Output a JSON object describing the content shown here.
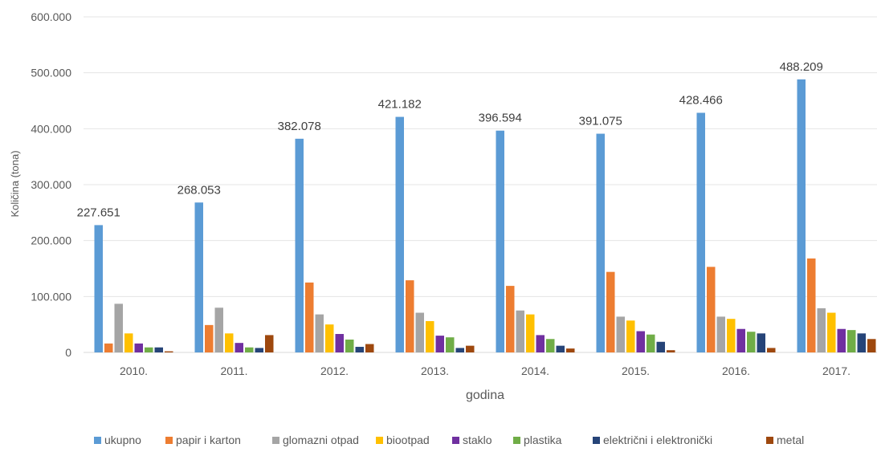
{
  "chart_data": {
    "type": "bar",
    "title": "",
    "xlabel": "godina",
    "ylabel": "Količina (tona)",
    "ylim": [
      0,
      600000
    ],
    "yticks": [
      0,
      100000,
      200000,
      300000,
      400000,
      500000,
      600000
    ],
    "ytick_labels": [
      "0",
      "100.000",
      "200.000",
      "300.000",
      "400.000",
      "500.000",
      "600.000"
    ],
    "grid": true,
    "legend_position": "bottom",
    "categories": [
      "2010.",
      "2011.",
      "2012.",
      "2013.",
      "2014.",
      "2015.",
      "2016.",
      "2017."
    ],
    "series": [
      {
        "name": "ukupno",
        "color": "#5B9BD5",
        "values": [
          227651,
          268053,
          382078,
          421182,
          396594,
          391075,
          428466,
          488209
        ],
        "data_labels": [
          "227.651",
          "268.053",
          "382.078",
          "421.182",
          "396.594",
          "391.075",
          "428.466",
          "488.209"
        ]
      },
      {
        "name": "papir i karton",
        "color": "#ED7D31",
        "values": [
          16000,
          49000,
          125000,
          129000,
          119000,
          144000,
          153000,
          168000
        ]
      },
      {
        "name": "glomazni otpad",
        "color": "#A5A5A5",
        "values": [
          87000,
          80000,
          68000,
          71000,
          75000,
          64000,
          64000,
          79000
        ]
      },
      {
        "name": "biootpad",
        "color": "#FFC000",
        "values": [
          34000,
          34000,
          50000,
          56000,
          68000,
          57000,
          60000,
          71000
        ]
      },
      {
        "name": "staklo",
        "color": "#7030A0",
        "values": [
          16000,
          17000,
          33000,
          30000,
          31000,
          38000,
          42000,
          42000
        ]
      },
      {
        "name": "plastika",
        "color": "#70AD47",
        "values": [
          9000,
          9000,
          23000,
          27000,
          24000,
          32000,
          37000,
          40000
        ]
      },
      {
        "name": "električni i elektronički",
        "color": "#264478",
        "values": [
          9000,
          8000,
          10000,
          8000,
          12000,
          19000,
          34000,
          34000
        ]
      },
      {
        "name": "metal",
        "color": "#9E480E",
        "values": [
          2000,
          31000,
          15000,
          12000,
          7000,
          4000,
          8000,
          24000
        ]
      }
    ]
  }
}
